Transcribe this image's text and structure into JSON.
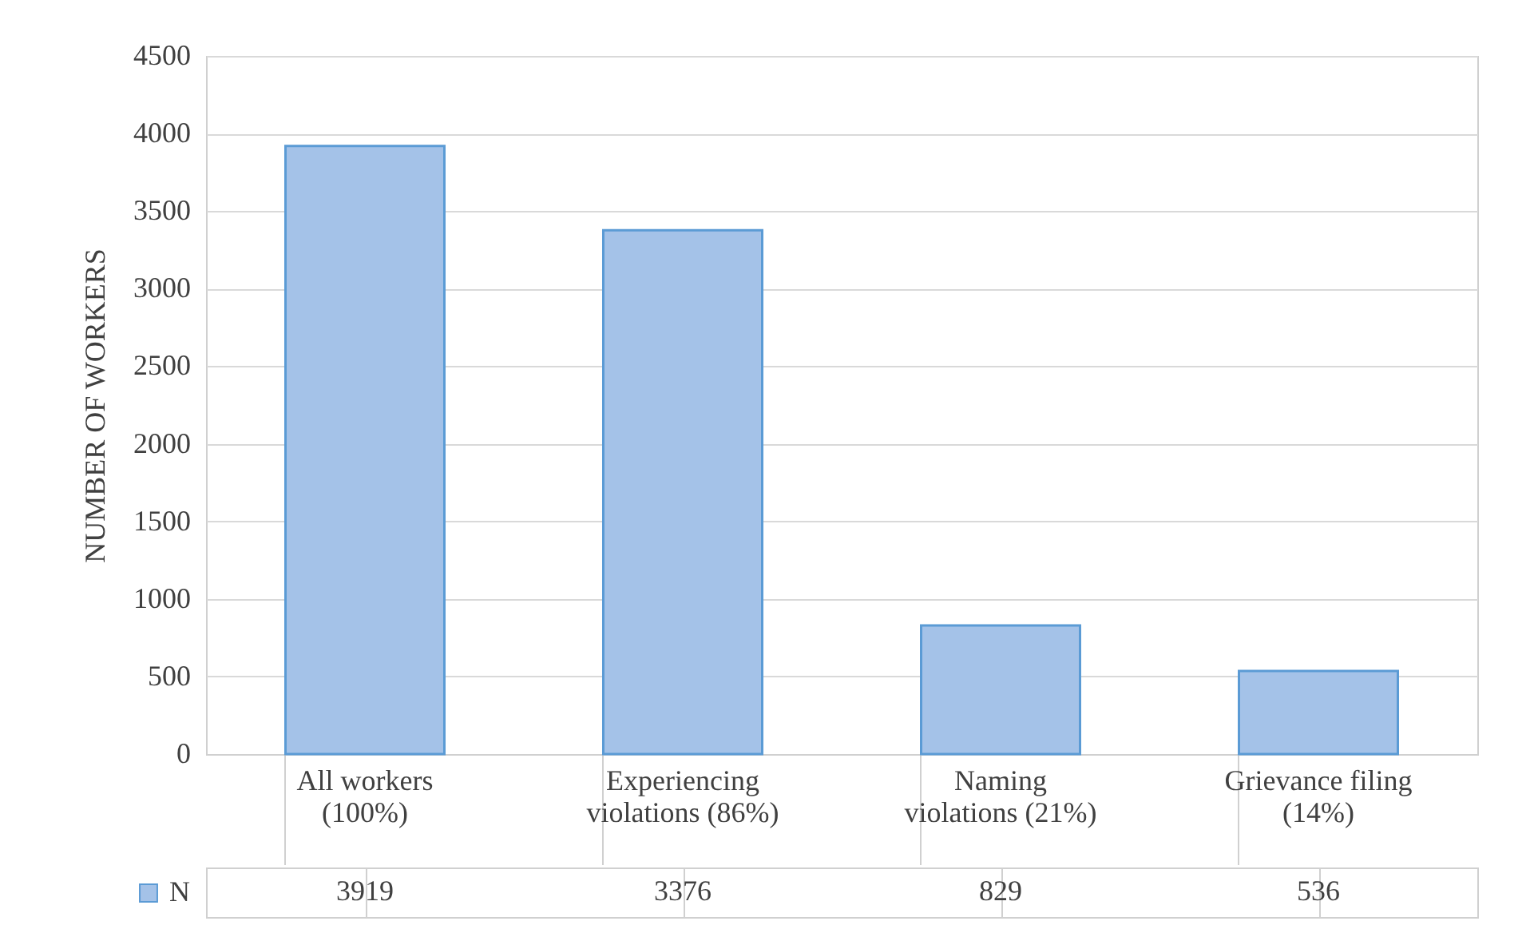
{
  "chart_data": {
    "type": "bar",
    "ylabel": "NUMBER OF WORKERS",
    "categories": [
      "All workers (100%)",
      "Experiencing violations (86%)",
      "Naming violations (21%)",
      "Grievance filing (14%)"
    ],
    "series": [
      {
        "name": "N",
        "color": "#a4c2e8",
        "values": [
          3919,
          3376,
          829,
          536
        ]
      }
    ],
    "ylim": [
      0,
      4500
    ],
    "yticks": [
      0,
      500,
      1000,
      1500,
      2000,
      2500,
      3000,
      3500,
      4000,
      4500
    ],
    "grid": "y",
    "legend": "bottom left",
    "data_labels": true
  }
}
